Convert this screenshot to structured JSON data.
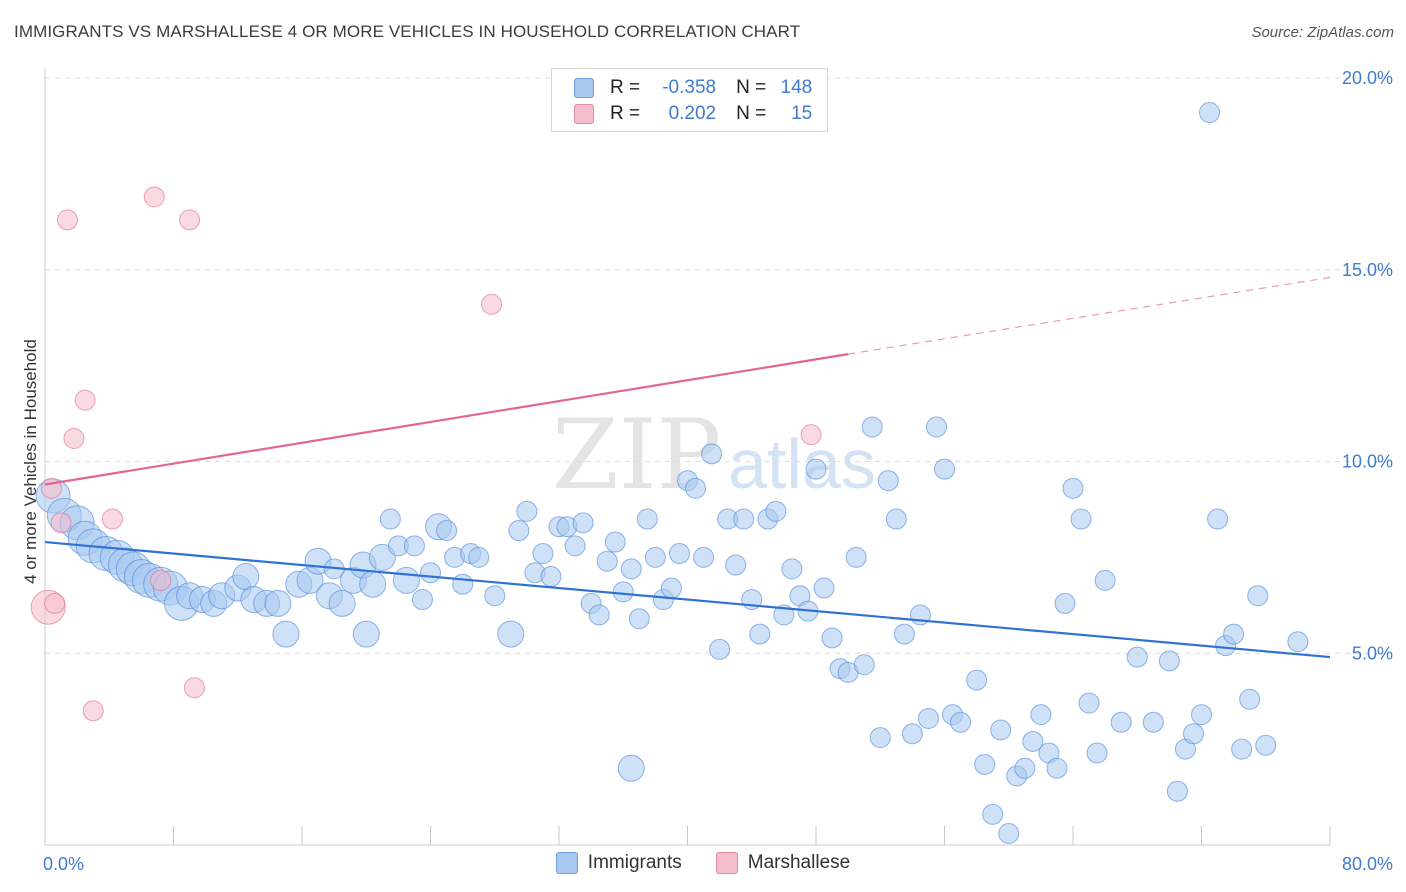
{
  "header": {
    "title": "IMMIGRANTS VS MARSHALLESE 4 OR MORE VEHICLES IN HOUSEHOLD CORRELATION CHART",
    "source": "Source: ZipAtlas.com"
  },
  "legend_stats": {
    "rows": [
      {
        "r_label": "R =",
        "r_value": "-0.358",
        "n_label": "N =",
        "n_value": "148",
        "color": "#a8c8f0"
      },
      {
        "r_label": "R =",
        "r_value": "0.202",
        "n_label": "N =",
        "n_value": "15",
        "color": "#f5bccb"
      }
    ]
  },
  "bottom_legend": [
    {
      "label": "Immigrants",
      "color": "#a8c8f0"
    },
    {
      "label": "Marshallese",
      "color": "#f5bccb"
    }
  ],
  "watermark": {
    "zip": "ZIP",
    "atlas": "atlas"
  },
  "chart_data": {
    "type": "scatter",
    "title": "IMMIGRANTS VS MARSHALLESE 4 OR MORE VEHICLES IN HOUSEHOLD CORRELATION CHART",
    "xlabel": "",
    "ylabel": "4 or more Vehicles in Household",
    "xlim": [
      0,
      80
    ],
    "ylim": [
      0,
      20
    ],
    "x_tick_labels": [
      "0.0%",
      "80.0%"
    ],
    "y_tick_values": [
      5,
      10,
      15,
      20
    ],
    "y_tick_labels": [
      "5.0%",
      "10.0%",
      "15.0%",
      "20.0%"
    ],
    "grid": "horizontal dashed",
    "legend_placement": "top-center",
    "series": [
      {
        "name": "Immigrants",
        "color": "#4a86d8",
        "fill": "#a8c8f0",
        "r": -0.358,
        "n": 148,
        "trend": {
          "x": [
            0,
            80
          ],
          "y": [
            7.9,
            4.9
          ]
        },
        "points": [
          [
            0.5,
            9.1,
            3
          ],
          [
            1.2,
            8.6,
            3
          ],
          [
            2,
            8.4,
            3
          ],
          [
            2.5,
            8.0,
            3
          ],
          [
            3,
            7.8,
            3
          ],
          [
            3.8,
            7.6,
            3
          ],
          [
            4.5,
            7.5,
            3
          ],
          [
            5,
            7.3,
            3
          ],
          [
            5.5,
            7.2,
            3
          ],
          [
            6,
            7.0,
            3
          ],
          [
            6.5,
            6.9,
            3
          ],
          [
            7.2,
            6.8,
            3
          ],
          [
            7.8,
            6.7,
            3
          ],
          [
            8.5,
            6.3,
            3
          ],
          [
            9,
            6.5,
            2
          ],
          [
            9.8,
            6.4,
            2
          ],
          [
            10.5,
            6.3,
            2
          ],
          [
            11,
            6.5,
            2
          ],
          [
            12,
            6.7,
            2
          ],
          [
            12.5,
            7.0,
            2
          ],
          [
            13,
            6.4,
            2
          ],
          [
            13.8,
            6.3,
            2
          ],
          [
            14.5,
            6.3,
            2
          ],
          [
            15,
            5.5,
            2
          ],
          [
            15.8,
            6.8,
            2
          ],
          [
            16.5,
            6.9,
            2
          ],
          [
            17,
            7.4,
            2
          ],
          [
            17.7,
            6.5,
            2
          ],
          [
            18,
            7.2,
            1
          ],
          [
            18.5,
            6.3,
            2
          ],
          [
            19.2,
            6.9,
            2
          ],
          [
            19.8,
            7.3,
            2
          ],
          [
            20,
            5.5,
            2
          ],
          [
            20.4,
            6.8,
            2
          ],
          [
            21,
            7.5,
            2
          ],
          [
            21.5,
            8.5,
            1
          ],
          [
            22,
            7.8,
            1
          ],
          [
            22.5,
            6.9,
            2
          ],
          [
            23,
            7.8,
            1
          ],
          [
            23.5,
            6.4,
            1
          ],
          [
            24,
            7.1,
            1
          ],
          [
            24.5,
            8.3,
            2
          ],
          [
            25,
            8.2,
            1
          ],
          [
            25.5,
            7.5,
            1
          ],
          [
            26,
            6.8,
            1
          ],
          [
            26.5,
            7.6,
            1
          ],
          [
            27,
            7.5,
            1
          ],
          [
            28,
            6.5,
            1
          ],
          [
            29,
            5.5,
            2
          ],
          [
            29.5,
            8.2,
            1
          ],
          [
            30,
            8.7,
            1
          ],
          [
            30.5,
            7.1,
            1
          ],
          [
            31,
            7.6,
            1
          ],
          [
            31.5,
            7.0,
            1
          ],
          [
            32,
            8.3,
            1
          ],
          [
            32.5,
            8.3,
            1
          ],
          [
            33,
            7.8,
            1
          ],
          [
            33.5,
            8.4,
            1
          ],
          [
            34,
            6.3,
            1
          ],
          [
            34.5,
            6.0,
            1
          ],
          [
            35,
            7.4,
            1
          ],
          [
            35.5,
            7.9,
            1
          ],
          [
            36,
            6.6,
            1
          ],
          [
            36.5,
            7.2,
            1
          ],
          [
            37,
            5.9,
            1
          ],
          [
            37.5,
            8.5,
            1
          ],
          [
            38,
            7.5,
            1
          ],
          [
            38.5,
            6.4,
            1
          ],
          [
            39,
            6.7,
            1
          ],
          [
            39.5,
            7.6,
            1
          ],
          [
            40,
            9.5,
            1
          ],
          [
            40.5,
            9.3,
            1
          ],
          [
            41,
            7.5,
            1
          ],
          [
            41.5,
            10.2,
            1
          ],
          [
            42,
            5.1,
            1
          ],
          [
            42.5,
            8.5,
            1
          ],
          [
            43,
            7.3,
            1
          ],
          [
            43.5,
            8.5,
            1
          ],
          [
            44,
            6.4,
            1
          ],
          [
            44.5,
            5.5,
            1
          ],
          [
            45,
            8.5,
            1
          ],
          [
            45.5,
            8.7,
            1
          ],
          [
            46,
            6.0,
            1
          ],
          [
            46.5,
            7.2,
            1
          ],
          [
            47,
            6.5,
            1
          ],
          [
            47.5,
            6.1,
            1
          ],
          [
            48,
            9.8,
            1
          ],
          [
            48.5,
            6.7,
            1
          ],
          [
            49,
            5.4,
            1
          ],
          [
            49.5,
            4.6,
            1
          ],
          [
            50,
            4.5,
            1
          ],
          [
            50.5,
            7.5,
            1
          ],
          [
            51,
            4.7,
            1
          ],
          [
            51.5,
            10.9,
            1
          ],
          [
            52,
            2.8,
            1
          ],
          [
            52.5,
            9.5,
            1
          ],
          [
            53,
            8.5,
            1
          ],
          [
            53.5,
            5.5,
            1
          ],
          [
            54,
            2.9,
            1
          ],
          [
            54.5,
            6.0,
            1
          ],
          [
            55,
            3.3,
            1
          ],
          [
            55.5,
            10.9,
            1
          ],
          [
            56,
            9.8,
            1
          ],
          [
            56.5,
            3.4,
            1
          ],
          [
            57,
            3.2,
            1
          ],
          [
            58,
            4.3,
            1
          ],
          [
            58.5,
            2.1,
            1
          ],
          [
            59,
            0.8,
            1
          ],
          [
            59.5,
            3.0,
            1
          ],
          [
            60,
            0.3,
            1
          ],
          [
            60.5,
            1.8,
            1
          ],
          [
            61,
            2.0,
            1
          ],
          [
            61.5,
            2.7,
            1
          ],
          [
            62,
            3.4,
            1
          ],
          [
            62.5,
            2.4,
            1
          ],
          [
            63,
            2.0,
            1
          ],
          [
            63.5,
            6.3,
            1
          ],
          [
            64,
            9.3,
            1
          ],
          [
            64.5,
            8.5,
            1
          ],
          [
            65,
            3.7,
            1
          ],
          [
            65.5,
            2.4,
            1
          ],
          [
            66,
            6.9,
            1
          ],
          [
            67,
            3.2,
            1
          ],
          [
            68,
            4.9,
            1
          ],
          [
            69,
            3.2,
            1
          ],
          [
            70,
            4.8,
            1
          ],
          [
            70.5,
            1.4,
            1
          ],
          [
            71,
            2.5,
            1
          ],
          [
            71.5,
            2.9,
            1
          ],
          [
            72,
            3.4,
            1
          ],
          [
            72.5,
            19.1,
            1
          ],
          [
            73,
            8.5,
            1
          ],
          [
            73.5,
            5.2,
            1
          ],
          [
            74,
            5.5,
            1
          ],
          [
            74.5,
            2.5,
            1
          ],
          [
            75,
            3.8,
            1
          ],
          [
            75.5,
            6.5,
            1
          ],
          [
            76,
            2.6,
            1
          ],
          [
            78,
            5.3,
            1
          ],
          [
            36.5,
            2.0,
            2
          ]
        ]
      },
      {
        "name": "Marshallese",
        "color": "#e0678f",
        "fill": "#f5bccb",
        "r": 0.202,
        "n": 15,
        "trend": {
          "x": [
            0,
            50
          ],
          "y": [
            9.4,
            12.8
          ]
        },
        "trend_dashed_to": {
          "x": 80,
          "y": 14.8
        },
        "points": [
          [
            0.2,
            6.2,
            3
          ],
          [
            0.6,
            6.3,
            1
          ],
          [
            0.4,
            9.3,
            1
          ],
          [
            1,
            8.4,
            1
          ],
          [
            1.4,
            16.3,
            1
          ],
          [
            1.8,
            10.6,
            1
          ],
          [
            2.5,
            11.6,
            1
          ],
          [
            3,
            3.5,
            1
          ],
          [
            6.8,
            16.9,
            1
          ],
          [
            7.2,
            6.9,
            1
          ],
          [
            9,
            16.3,
            1
          ],
          [
            9.3,
            4.1,
            1
          ],
          [
            27.8,
            14.1,
            1
          ],
          [
            47.7,
            10.7,
            1
          ],
          [
            4.2,
            8.5,
            1
          ]
        ]
      }
    ]
  }
}
